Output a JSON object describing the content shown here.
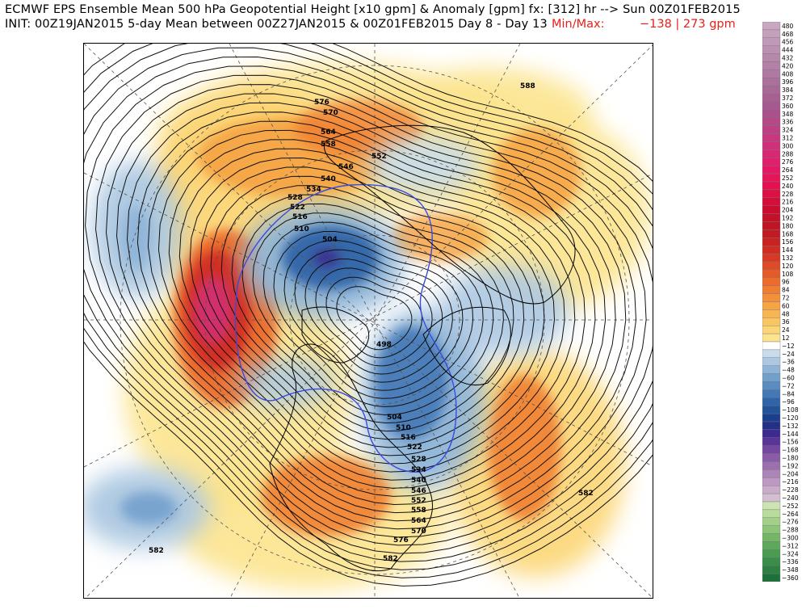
{
  "header": {
    "line1": "ECMWF EPS Ensemble Mean 500 hPa Geopotential Height [x10 gpm] & Anomaly [gpm] fx: [312] hr --> Sun 00Z01FEB2015",
    "line2": "INIT: 00Z19JAN2015 5-day Mean between 00Z27JAN2015 & 00Z01FEB2015    Day 8 - Day 13",
    "minmax_label": "Min/Max:",
    "minmax_values": "−138 |  273 gpm"
  },
  "map": {
    "height_contour_labels": [
      "588",
      "576",
      "570",
      "564",
      "558",
      "552",
      "546",
      "540",
      "534",
      "528",
      "522",
      "516",
      "510",
      "504",
      "498",
      "504",
      "510",
      "516",
      "522",
      "528",
      "534",
      "540",
      "546",
      "552",
      "558",
      "564",
      "570",
      "576",
      "582",
      "582",
      "582"
    ]
  },
  "colorbar": {
    "levels": [
      "480",
      "468",
      "456",
      "444",
      "432",
      "420",
      "408",
      "396",
      "384",
      "372",
      "360",
      "348",
      "336",
      "324",
      "312",
      "300",
      "288",
      "276",
      "264",
      "252",
      "240",
      "228",
      "216",
      "204",
      "192",
      "180",
      "168",
      "156",
      "144",
      "132",
      "120",
      "108",
      "96",
      "84",
      "72",
      "60",
      "48",
      "36",
      "24",
      "12",
      "−12",
      "−24",
      "−36",
      "−48",
      "−60",
      "−72",
      "−84",
      "−96",
      "−108",
      "−120",
      "−132",
      "−144",
      "−156",
      "−168",
      "−180",
      "−192",
      "−204",
      "−216",
      "−228",
      "−240",
      "−252",
      "−264",
      "−276",
      "−288",
      "−300",
      "−312",
      "−324",
      "−336",
      "−348",
      "−360"
    ],
    "colors": [
      "#c8a8c0",
      "#c4a0bc",
      "#c098b8",
      "#bc90b2",
      "#b888ac",
      "#b480a8",
      "#b078a2",
      "#ac709c",
      "#aa6898",
      "#a86094",
      "#a85890",
      "#ac508c",
      "#b44888",
      "#be4084",
      "#c83880",
      "#d0307a",
      "#d82874",
      "#e0206c",
      "#e41864",
      "#e8145a",
      "#e41050",
      "#dc1044",
      "#d40e38",
      "#cc0c2e",
      "#c41028",
      "#be1424",
      "#c01a22",
      "#c82222",
      "#d02c22",
      "#d83824",
      "#e04a26",
      "#e65a28",
      "#ec6c2c",
      "#f07e32",
      "#f4903a",
      "#f6a444",
      "#f8b652",
      "#fac662",
      "#fcd676",
      "#fce48e",
      "#ffffff",
      "#c8dcec",
      "#acc8e2",
      "#8eb4d8",
      "#72a0cc",
      "#5a8cc2",
      "#4478b6",
      "#3064a8",
      "#22529a",
      "#1a3f8c",
      "#22308a",
      "#3c2a90",
      "#5a3498",
      "#7448a0",
      "#8a5ca8",
      "#9c70b0",
      "#ac84b8",
      "#bc98c2",
      "#c8acca",
      "#d2c0d2",
      "#cce4b2",
      "#b8dc9c",
      "#a2d088",
      "#8cc478",
      "#74b668",
      "#5ea85c",
      "#4a9c52",
      "#3a8e4a",
      "#2c8042",
      "#1e703a"
    ]
  },
  "legend_header": "Min/Max"
}
